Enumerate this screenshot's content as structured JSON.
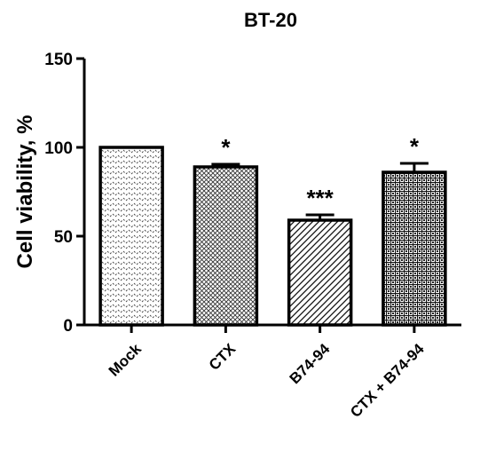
{
  "chart_data": {
    "type": "bar",
    "title": "BT-20",
    "xlabel": "",
    "ylabel": "Cell viability, %",
    "ylim": [
      0,
      150
    ],
    "yticks": [
      0,
      50,
      100,
      150
    ],
    "categories": [
      "Mock",
      "CTX",
      "B74-94",
      "CTX + B74-94"
    ],
    "values": [
      100,
      89,
      59,
      86
    ],
    "errors": [
      0,
      1.5,
      3,
      5
    ],
    "significance": [
      "",
      "*",
      "***",
      "*"
    ],
    "patterns": [
      "dots",
      "crosshatch",
      "diagonal",
      "grid"
    ],
    "grid": false,
    "legend": "none",
    "bar_color": "#ffffff",
    "edge_color": "#000000"
  }
}
